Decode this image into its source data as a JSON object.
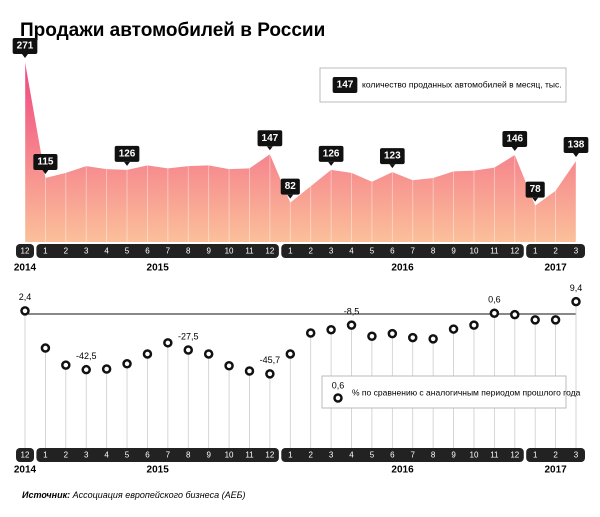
{
  "title": "Продажи автомобилей в России",
  "source": {
    "label": "Источник:",
    "text": "Ассоциация европейского бизнеса (АЕБ)"
  },
  "chart_data": [
    {
      "type": "area",
      "color": "#f0457f",
      "categories": [
        "12",
        "1",
        "2",
        "3",
        "4",
        "5",
        "6",
        "7",
        "8",
        "9",
        "10",
        "11",
        "12",
        "1",
        "2",
        "3",
        "4",
        "5",
        "6",
        "7",
        "8",
        "9",
        "10",
        "11",
        "12",
        "1",
        "2",
        "3"
      ],
      "year_labels": [
        "2014",
        "2015",
        "2016",
        "2017"
      ],
      "values": [
        271,
        115,
        122,
        131,
        127,
        126,
        132,
        128,
        131,
        132,
        127,
        128,
        147,
        82,
        104,
        126,
        122,
        110,
        123,
        112,
        115,
        124,
        125,
        129,
        146,
        78,
        98,
        138
      ],
      "value_labels": [
        "271",
        "115",
        null,
        null,
        null,
        "126",
        null,
        null,
        null,
        null,
        null,
        null,
        "147",
        "82",
        null,
        "126",
        null,
        null,
        "123",
        null,
        null,
        null,
        null,
        null,
        "146",
        "78",
        null,
        "138"
      ],
      "legend": {
        "badge": "147",
        "text": "количество проданных автомобилей в месяц, тыс."
      }
    },
    {
      "type": "scatter",
      "categories": [
        "12",
        "1",
        "2",
        "3",
        "4",
        "5",
        "6",
        "7",
        "8",
        "9",
        "10",
        "11",
        "12",
        "1",
        "2",
        "3",
        "4",
        "5",
        "6",
        "7",
        "8",
        "9",
        "10",
        "11",
        "12",
        "1",
        "2",
        "3"
      ],
      "year_labels": [
        "2014",
        "2015",
        "2016",
        "2017"
      ],
      "values": [
        2.4,
        -26,
        -39,
        -42.5,
        -42,
        -38,
        -30.5,
        -22,
        -27.5,
        -30.5,
        -39.5,
        -43.5,
        -45.7,
        -30.5,
        -14.5,
        -12,
        -8.5,
        -17,
        -15,
        -18,
        -19,
        -11.5,
        -8.5,
        0.6,
        -0.5,
        -4.5,
        -4.5,
        9.4
      ],
      "value_labels": [
        "2,4",
        null,
        null,
        "-42,5",
        null,
        null,
        null,
        null,
        "-27,5",
        null,
        null,
        null,
        "-45,7",
        null,
        null,
        null,
        "-8,5",
        null,
        null,
        null,
        null,
        null,
        null,
        "0,6",
        null,
        null,
        null,
        "9,4"
      ],
      "legend": {
        "badge": "0,6",
        "text": "% по сравнению с аналогичным периодом прошлого года"
      }
    }
  ]
}
